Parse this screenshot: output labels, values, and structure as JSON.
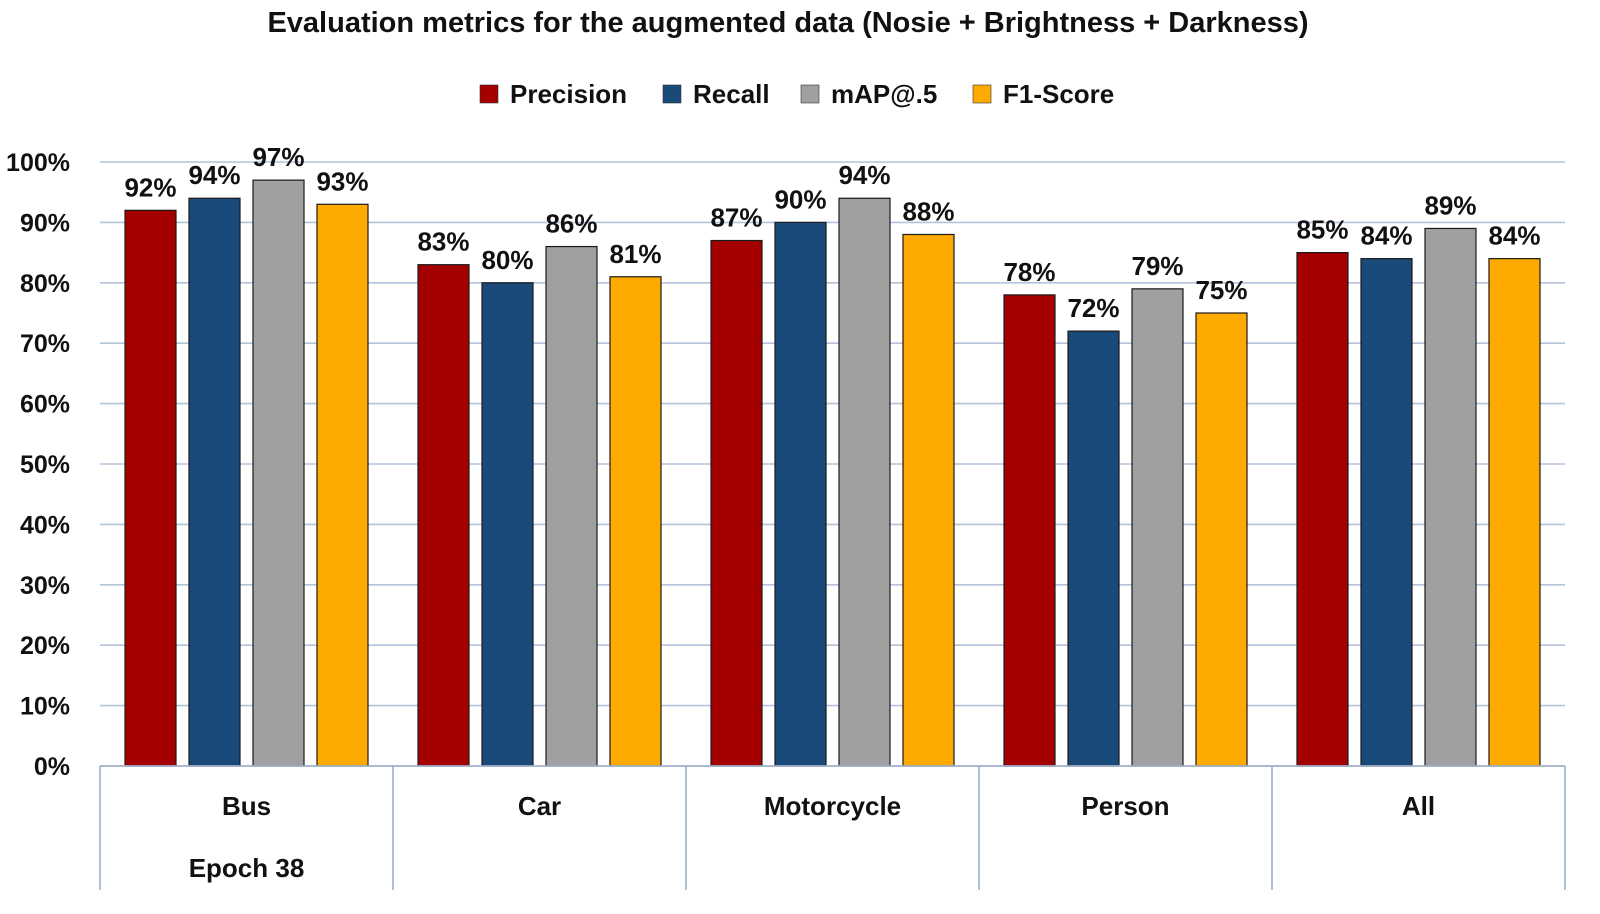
{
  "chart_data": {
    "type": "bar",
    "title": "Evaluation metrics for the augmented data (Nosie + Brightness + Darkness)",
    "categories": [
      "Bus",
      "Car",
      "Motorcycle",
      "Person",
      "All"
    ],
    "category_sublabel": "Epoch 38",
    "series": [
      {
        "name": "Precision",
        "color": "#a50000",
        "values": [
          92,
          83,
          87,
          78,
          85
        ]
      },
      {
        "name": "Recall",
        "color": "#1a4a7a",
        "values": [
          94,
          80,
          90,
          72,
          84
        ]
      },
      {
        "name": "mAP@.5",
        "color": "#a0a0a0",
        "values": [
          97,
          86,
          94,
          79,
          89
        ]
      },
      {
        "name": "F1-Score",
        "color": "#ffaa00",
        "values": [
          93,
          81,
          88,
          75,
          84
        ]
      }
    ],
    "value_labels": [
      [
        "92%",
        "83%",
        "87%",
        "78%",
        "85%"
      ],
      [
        "94%",
        "80%",
        "90%",
        "72%",
        "84%"
      ],
      [
        "97%",
        "86%",
        "94%",
        "79%",
        "89%"
      ],
      [
        "93%",
        "81%",
        "88%",
        "75%",
        "84%"
      ]
    ],
    "ylim": [
      0,
      100
    ],
    "yticks": [
      0,
      10,
      20,
      30,
      40,
      50,
      60,
      70,
      80,
      90,
      100
    ],
    "ytick_labels": [
      "0%",
      "10%",
      "20%",
      "30%",
      "40%",
      "50%",
      "60%",
      "70%",
      "80%",
      "90%",
      "100%"
    ],
    "grid": true,
    "legend_position": "top-center",
    "gridline_color": "#b4c4dc",
    "axis_color": "#9fb0c8"
  }
}
